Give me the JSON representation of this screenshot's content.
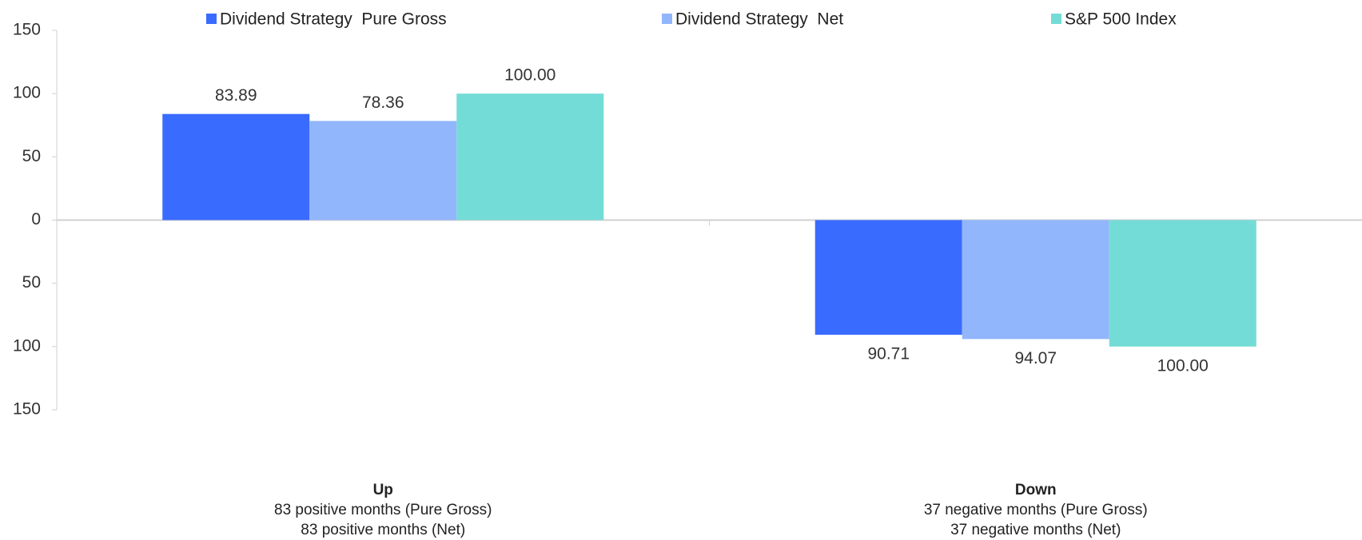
{
  "chart_data": {
    "type": "bar",
    "categories": [
      "Up",
      "Down"
    ],
    "category_notes": [
      [
        "83 positive months (Pure Gross)",
        "83 positive months (Net)"
      ],
      [
        "37 negative months (Pure Gross)",
        "37 negative months (Net)"
      ]
    ],
    "series": [
      {
        "name": "Dividend Strategy  Pure Gross",
        "color": "#3a6bff",
        "values": [
          83.89,
          -90.71
        ],
        "value_labels": [
          "83.89",
          "90.71"
        ]
      },
      {
        "name": "Dividend Strategy  Net",
        "color": "#91b6fc",
        "values": [
          78.36,
          -94.07
        ],
        "value_labels": [
          "78.36",
          "94.07"
        ]
      },
      {
        "name": "S&P 500 Index",
        "color": "#74dcd6",
        "values": [
          100.0,
          -100.0
        ],
        "value_labels": [
          "100.00",
          "100.00"
        ]
      }
    ],
    "ylim": [
      -150,
      150
    ],
    "yticks": [
      {
        "value": -150,
        "label": "150"
      },
      {
        "value": -100,
        "label": "100"
      },
      {
        "value": -50,
        "label": "50"
      },
      0,
      50,
      100,
      150
    ],
    "legend": "top"
  }
}
